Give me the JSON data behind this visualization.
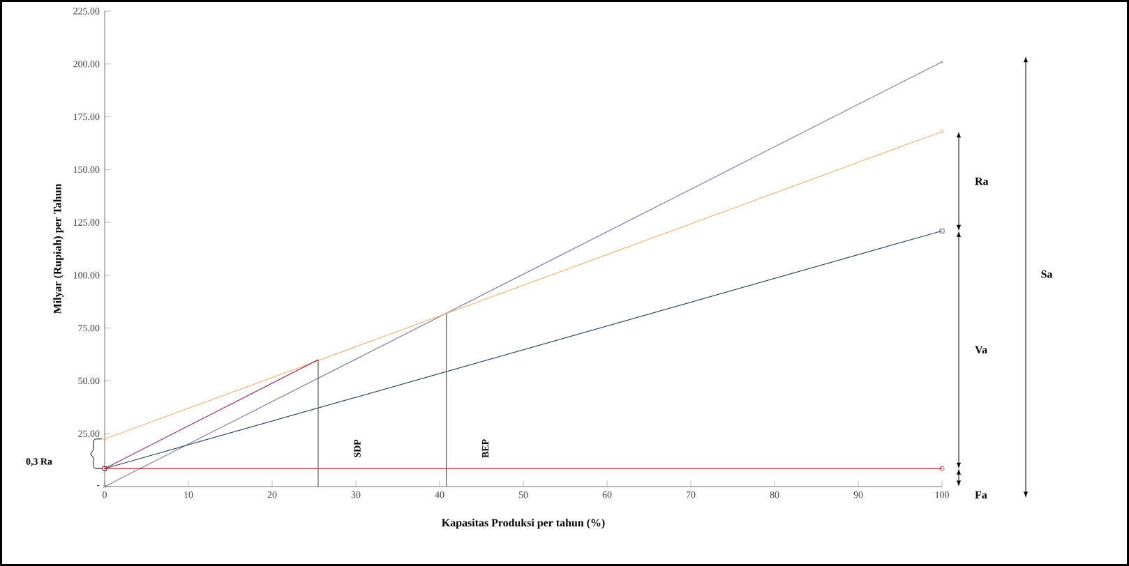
{
  "chart_data": {
    "type": "line",
    "xlabel": "Kapasitas Produksi per tahun (%)",
    "ylabel": "Milyar (Rupiah) per Tahun",
    "x": [
      0,
      100
    ],
    "series": [
      {
        "color": "#7f7fa8",
        "marker": "cross",
        "values": [
          0,
          201
        ]
      },
      {
        "color": "#f5b47a",
        "marker": "triangle",
        "values": [
          22.5,
          168
        ]
      },
      {
        "color": "#2e4a5c",
        "marker": "square",
        "values": [
          8.5,
          121
        ]
      },
      {
        "color": "#c00000",
        "marker": "circle",
        "values": [
          8.5,
          8.5
        ]
      },
      {
        "x": [
          0,
          25.5
        ],
        "color": "#993366",
        "values": [
          8.5,
          60
        ]
      },
      {
        "name": "SDP",
        "x": [
          25.5,
          25.5
        ],
        "color": "#595959",
        "values": [
          0,
          60
        ]
      },
      {
        "name": "BEP",
        "x": [
          40.8,
          40.8
        ],
        "color": "#595959",
        "values": [
          0,
          82
        ]
      }
    ],
    "annotations": [
      "0,3 Ra",
      "Sa",
      "Ra",
      "Va",
      "Fa"
    ],
    "xlim": [
      0,
      100
    ],
    "xticks": [
      0,
      10,
      20,
      30,
      40,
      50,
      60,
      70,
      80,
      90,
      100
    ],
    "ylim": [
      0,
      225
    ],
    "yticks": [
      {
        "value": 0,
        "label": "-"
      },
      {
        "value": 25,
        "label": "25.00"
      },
      {
        "value": 50,
        "label": "50.00"
      },
      {
        "value": 75,
        "label": "75.00"
      },
      {
        "value": 100,
        "label": "100.00"
      },
      {
        "value": 125,
        "label": "125.00"
      },
      {
        "value": 150,
        "label": "150.00"
      },
      {
        "value": 175,
        "label": "175.00"
      },
      {
        "value": 200,
        "label": "200.00"
      },
      {
        "value": 225,
        "label": "225.00"
      }
    ],
    "grid": false,
    "legend": false
  }
}
